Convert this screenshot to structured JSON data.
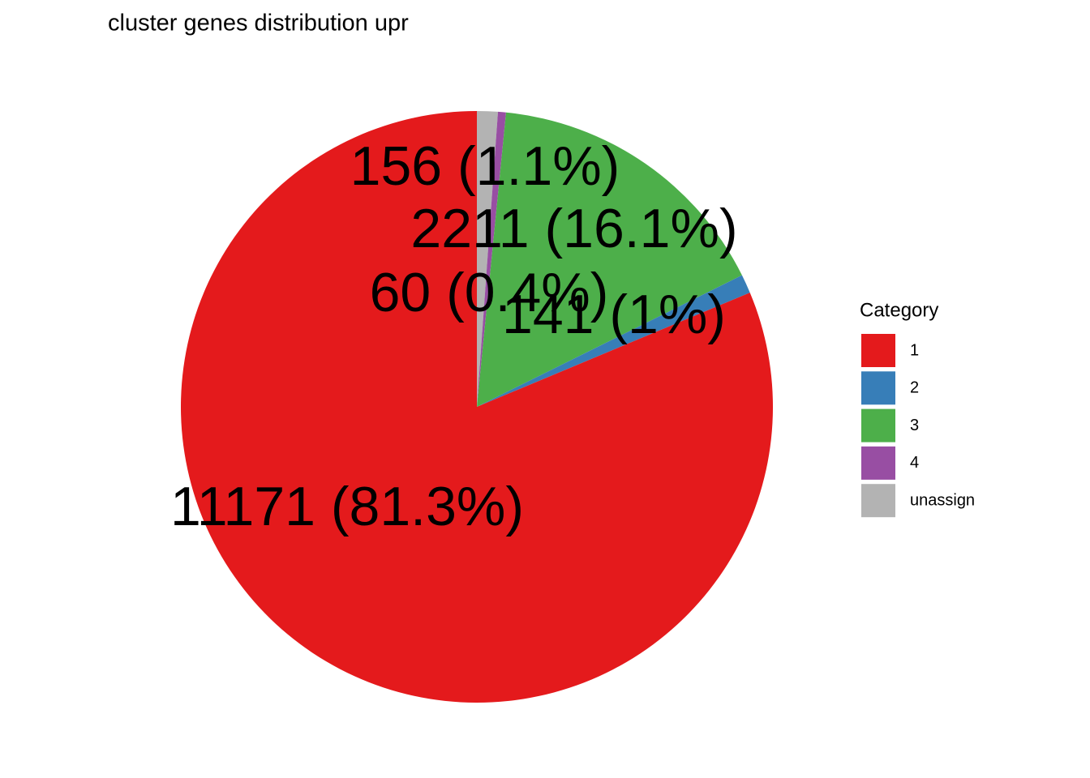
{
  "chart_data": {
    "type": "pie",
    "title": "cluster genes distribution upr",
    "categories": [
      "1",
      "2",
      "3",
      "4",
      "unassign"
    ],
    "values": [
      11171,
      141,
      2211,
      60,
      156
    ],
    "value_labels": [
      "11171 (81.3%)",
      "141 (1%)",
      "2211 (16.1%)",
      "60 (0.4%)",
      "156 (1.1%)"
    ],
    "colors": [
      "#E41A1C",
      "#377EB8",
      "#4DAF4A",
      "#984EA3",
      "#B3B3B3"
    ],
    "legend_title": "Category",
    "legend": "right"
  }
}
